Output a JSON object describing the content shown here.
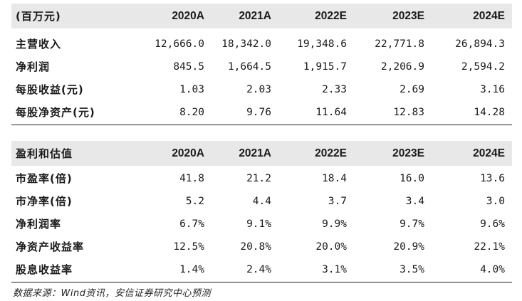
{
  "table1": {
    "header": [
      "(百万元)",
      "2020A",
      "2021A",
      "2022E",
      "2023E",
      "2024E"
    ],
    "rows": [
      [
        "主营收入",
        "12,666.0",
        "18,342.0",
        "19,348.6",
        "22,771.8",
        "26,894.3"
      ],
      [
        "净利润",
        "845.5",
        "1,664.5",
        "1,915.7",
        "2,206.9",
        "2,594.2"
      ],
      [
        "每股收益(元)",
        "1.03",
        "2.03",
        "2.33",
        "2.69",
        "3.16"
      ],
      [
        "每股净资产(元)",
        "8.20",
        "9.76",
        "11.64",
        "12.83",
        "14.28"
      ]
    ]
  },
  "table2": {
    "header": [
      "盈利和估值",
      "2020A",
      "2021A",
      "2022E",
      "2023E",
      "2024E"
    ],
    "rows": [
      [
        "市盈率(倍)",
        "41.8",
        "21.2",
        "18.4",
        "16.0",
        "13.6"
      ],
      [
        "市净率(倍)",
        "5.2",
        "4.4",
        "3.7",
        "3.4",
        "3.0"
      ],
      [
        "净利润率",
        "6.7%",
        "9.1%",
        "9.9%",
        "9.7%",
        "9.6%"
      ],
      [
        "净资产收益率",
        "12.5%",
        "20.8%",
        "20.0%",
        "20.9%",
        "22.1%"
      ],
      [
        "股息收益率",
        "1.4%",
        "2.4%",
        "3.1%",
        "3.5%",
        "4.0%"
      ]
    ]
  },
  "source": "数据来源：Wind资讯，安信证券研究中心预测",
  "colors": {
    "header_band": "#e8e8e8",
    "rule": "#222222"
  }
}
